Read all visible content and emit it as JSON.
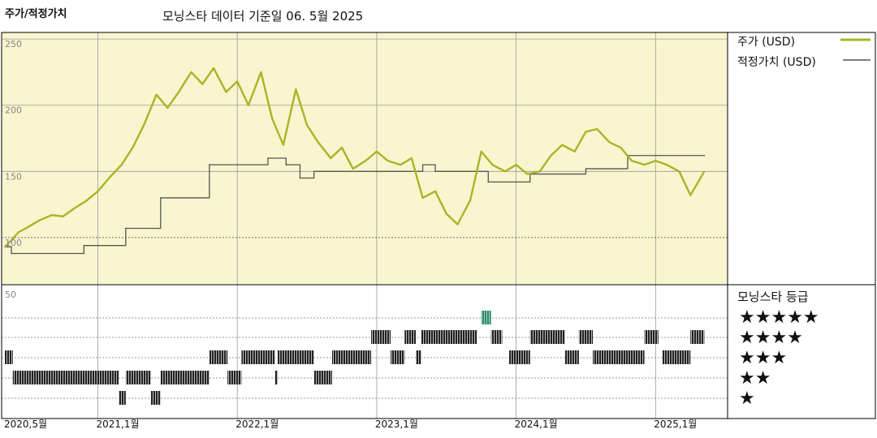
{
  "header": {
    "left_title": "주가/적정가치",
    "subtitle": "모닝스타 데이터 기준일 06. 5월 2025"
  },
  "colors": {
    "plot_bg": "#f8f5cf",
    "price_line": "#a8b526",
    "fair_value_line": "#555555",
    "rating_bar": "#333333",
    "rating_highlight": "#2f8a66"
  },
  "legend": {
    "price": "주가 (USD)",
    "fair_value": "적정가치 (USD)",
    "rating_title": "모닝스타 등급"
  },
  "stars": [
    "★★★★★",
    "★★★★",
    "★★★",
    "★★",
    "★"
  ],
  "chart_data": [
    {
      "type": "line",
      "title": "주가/적정가치",
      "subtitle": "모닝스타 데이터 기준일 06. 5월 2025",
      "ylim": [
        65,
        255
      ],
      "y_ticks": [
        "250",
        "200",
        "150",
        "100"
      ],
      "y_tick_values": [
        250,
        200,
        150,
        100
      ],
      "x_range": [
        2020.333,
        2025.47
      ],
      "x_ticks": [
        "2020,5월",
        "2021,1월",
        "2022,1월",
        "2023,1월",
        "2024,1월",
        "2025,1월"
      ],
      "x_tick_values": [
        2020.333,
        2021.0,
        2022.0,
        2023.0,
        2024.0,
        2025.0
      ],
      "grid": true,
      "legend_position": "right",
      "series": [
        {
          "name": "주가 (USD)",
          "x": [
            2020.333,
            2020.38,
            2020.43,
            2020.5,
            2020.58,
            2020.67,
            2020.75,
            2020.83,
            2020.92,
            2021.0,
            2021.08,
            2021.17,
            2021.25,
            2021.33,
            2021.42,
            2021.5,
            2021.58,
            2021.67,
            2021.75,
            2021.83,
            2021.92,
            2022.0,
            2022.08,
            2022.17,
            2022.25,
            2022.33,
            2022.42,
            2022.5,
            2022.58,
            2022.67,
            2022.75,
            2022.83,
            2022.92,
            2023.0,
            2023.08,
            2023.17,
            2023.25,
            2023.33,
            2023.42,
            2023.5,
            2023.58,
            2023.67,
            2023.75,
            2023.83,
            2023.92,
            2024.0,
            2024.08,
            2024.17,
            2024.25,
            2024.33,
            2024.42,
            2024.5,
            2024.58,
            2024.67,
            2024.75,
            2024.83,
            2024.92,
            2025.0,
            2025.08,
            2025.17,
            2025.25,
            2025.35
          ],
          "values": [
            93,
            98,
            104,
            108,
            113,
            117,
            116,
            122,
            128,
            135,
            145,
            155,
            168,
            185,
            208,
            198,
            210,
            225,
            216,
            228,
            210,
            218,
            200,
            225,
            190,
            170,
            212,
            185,
            172,
            160,
            168,
            152,
            158,
            165,
            158,
            155,
            160,
            130,
            135,
            118,
            110,
            128,
            165,
            155,
            150,
            155,
            148,
            150,
            162,
            170,
            165,
            180,
            182,
            172,
            168,
            158,
            155,
            158,
            155,
            150,
            132,
            150
          ],
          "color": "#a8b526"
        },
        {
          "name": "적정가치 (USD)",
          "x": [
            2020.333,
            2020.38,
            2020.9,
            2021.2,
            2021.45,
            2021.8,
            2022.0,
            2022.22,
            2022.35,
            2022.45,
            2022.55,
            2023.0,
            2023.33,
            2023.42,
            2023.8,
            2024.1,
            2024.5,
            2024.8,
            2025.35
          ],
          "values": [
            93,
            88,
            94,
            107,
            130,
            155,
            155,
            160,
            155,
            145,
            150,
            150,
            155,
            150,
            142,
            148,
            152,
            162,
            162
          ],
          "color": "#555555"
        }
      ]
    },
    {
      "type": "heatmap",
      "title": "모닝스타 등급",
      "ylabel": "50",
      "rows": [
        "★★★★★",
        "★★★★",
        "★★★",
        "★★",
        "★"
      ],
      "segments": [
        {
          "row": 2,
          "start": 2020.333,
          "end": 2020.39
        },
        {
          "row": 3,
          "start": 2020.39,
          "end": 2021.15
        },
        {
          "row": 4,
          "start": 2021.15,
          "end": 2021.2
        },
        {
          "row": 3,
          "start": 2021.2,
          "end": 2021.38
        },
        {
          "row": 4,
          "start": 2021.38,
          "end": 2021.45
        },
        {
          "row": 3,
          "start": 2021.45,
          "end": 2021.8
        },
        {
          "row": 2,
          "start": 2021.8,
          "end": 2021.93
        },
        {
          "row": 3,
          "start": 2021.93,
          "end": 2022.03
        },
        {
          "row": 2,
          "start": 2022.03,
          "end": 2022.27
        },
        {
          "row": 3,
          "start": 2022.27,
          "end": 2022.29
        },
        {
          "row": 2,
          "start": 2022.29,
          "end": 2022.55
        },
        {
          "row": 3,
          "start": 2022.55,
          "end": 2022.68
        },
        {
          "row": 2,
          "start": 2022.68,
          "end": 2022.96
        },
        {
          "row": 1,
          "start": 2022.96,
          "end": 2023.1
        },
        {
          "row": 2,
          "start": 2023.1,
          "end": 2023.2
        },
        {
          "row": 1,
          "start": 2023.2,
          "end": 2023.28
        },
        {
          "row": 2,
          "start": 2023.28,
          "end": 2023.32
        },
        {
          "row": 1,
          "start": 2023.32,
          "end": 2023.72
        },
        {
          "row": 0,
          "start": 2023.75,
          "end": 2023.82
        },
        {
          "row": 1,
          "start": 2023.82,
          "end": 2023.9
        },
        {
          "row": 2,
          "start": 2023.95,
          "end": 2024.1
        },
        {
          "row": 1,
          "start": 2024.1,
          "end": 2024.35
        },
        {
          "row": 2,
          "start": 2024.35,
          "end": 2024.45
        },
        {
          "row": 1,
          "start": 2024.45,
          "end": 2024.55
        },
        {
          "row": 2,
          "start": 2024.55,
          "end": 2024.92
        },
        {
          "row": 1,
          "start": 2024.92,
          "end": 2025.02
        },
        {
          "row": 2,
          "start": 2025.05,
          "end": 2025.25
        },
        {
          "row": 1,
          "start": 2025.25,
          "end": 2025.35
        }
      ]
    }
  ]
}
